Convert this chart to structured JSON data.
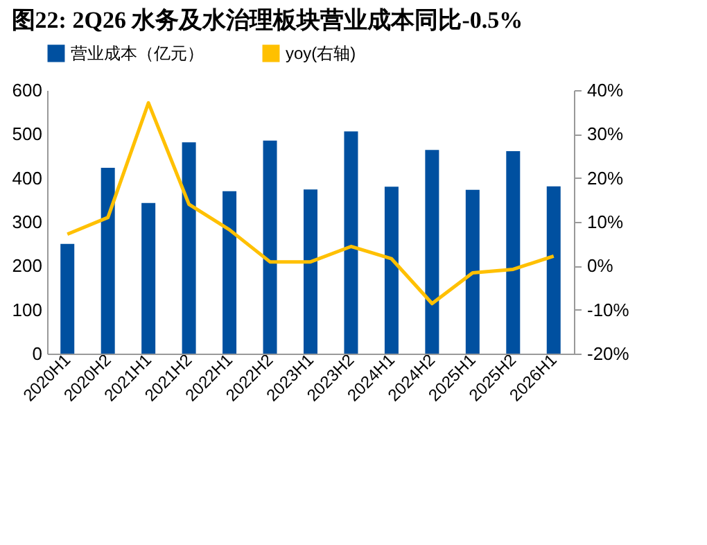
{
  "chart_data": {
    "type": "bar",
    "title": "图22: 2Q26 水务及水治理板块营业成本同比-0.5%",
    "categories": [
      "2020H1",
      "2020H2",
      "2021H1",
      "2021H2",
      "2022H1",
      "2022H2",
      "2023H1",
      "2023H2",
      "2024H1",
      "2024H2",
      "2025H1",
      "2025H2",
      "2026H1"
    ],
    "series": [
      {
        "name": "营业成本（亿元）",
        "color": "#0050a0",
        "values": [
          250,
          423,
          343,
          481,
          370,
          485,
          374,
          506,
          380,
          464,
          373,
          461,
          381
        ]
      },
      {
        "name": "yoy(右轴)",
        "type": "line",
        "axis": "y2",
        "color": "#ffc000",
        "values": [
          7.2,
          11,
          37.1,
          14,
          8.2,
          0.9,
          0.9,
          4.4,
          1.6,
          -8.6,
          -1.6,
          -0.8,
          2.2
        ]
      }
    ],
    "ylim": [
      0,
      600
    ],
    "yticks": [
      0,
      100,
      200,
      300,
      400,
      500,
      600
    ],
    "y2lim": [
      -20,
      40
    ],
    "y2ticks": [
      {
        "value": -20,
        "label": "-20%"
      },
      {
        "value": -10,
        "label": "-10%"
      },
      {
        "value": 0,
        "label": "0%"
      },
      {
        "value": 10,
        "label": "10%"
      },
      {
        "value": 20,
        "label": "20%"
      },
      {
        "value": 30,
        "label": "30%"
      },
      {
        "value": 40,
        "label": "40%"
      }
    ],
    "grid": false,
    "legend": "top",
    "marker": "none",
    "line_style": "solid"
  }
}
